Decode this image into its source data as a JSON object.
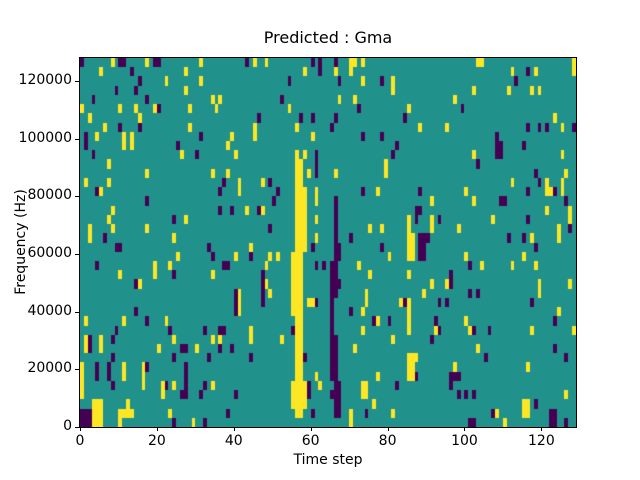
{
  "chart_data": {
    "type": "heatmap",
    "title": "Predicted : Gma",
    "xlabel": "Time step",
    "ylabel": "Frequency (Hz)",
    "x_range": [
      0,
      129
    ],
    "y_range": [
      0,
      128000
    ],
    "x_ticks": [
      "0",
      "20",
      "40",
      "60",
      "80",
      "100",
      "120"
    ],
    "x_tick_values": [
      0,
      20,
      40,
      60,
      80,
      100,
      120
    ],
    "y_ticks": [
      "0",
      "20000",
      "40000",
      "60000",
      "80000",
      "100000",
      "120000"
    ],
    "y_tick_values": [
      0,
      20000,
      40000,
      60000,
      80000,
      100000,
      120000
    ],
    "grid": {
      "cols": 129,
      "rows": 40
    },
    "legend": "none",
    "gridlines": false,
    "colormap": {
      "name": "viridis-3-level",
      "background_mid": "#21918c",
      "low_purple": "#440154",
      "high_yellow": "#fde725"
    },
    "noise": {
      "seed": 1337,
      "p_purple": 0.028,
      "p_yellow": 0.033
    },
    "features": [
      [
        "y",
        55,
        58,
        2,
        4
      ],
      [
        "y",
        56,
        57,
        1,
        1
      ],
      [
        "y",
        56,
        57,
        5,
        11
      ],
      [
        "y",
        55,
        57,
        12,
        18
      ],
      [
        "y",
        56,
        58,
        19,
        25
      ],
      [
        "y",
        56,
        57,
        26,
        28
      ],
      [
        "p",
        66,
        67,
        1,
        4
      ],
      [
        "p",
        65,
        66,
        5,
        9
      ],
      [
        "p",
        65,
        65,
        10,
        13
      ],
      [
        "p",
        65,
        66,
        14,
        17
      ],
      [
        "p",
        66,
        66,
        18,
        24
      ],
      [
        "p",
        67,
        67,
        18,
        19
      ],
      [
        "y",
        85,
        86,
        5,
        7
      ],
      [
        "y",
        85,
        85,
        10,
        13
      ],
      [
        "y",
        85,
        86,
        18,
        20
      ],
      [
        "y",
        85,
        85,
        21,
        22
      ],
      [
        "p",
        0,
        2,
        0,
        1
      ],
      [
        "y",
        3,
        5,
        0,
        2
      ],
      [
        "y",
        0,
        0,
        3,
        4
      ],
      [
        "y",
        0,
        0,
        5,
        6
      ],
      [
        "p",
        4,
        4,
        5,
        6
      ],
      [
        "p",
        7,
        7,
        5,
        6
      ],
      [
        "y",
        11,
        11,
        5,
        6
      ],
      [
        "p",
        27,
        27,
        5,
        6
      ],
      [
        "y",
        1,
        1,
        8,
        9
      ],
      [
        "y",
        5,
        5,
        8,
        9
      ],
      [
        "p",
        2,
        2,
        8,
        8
      ],
      [
        "y",
        20,
        20,
        8,
        8
      ],
      [
        "p",
        9,
        9,
        10,
        10
      ],
      [
        "p",
        23,
        23,
        10,
        10
      ],
      [
        "y",
        10,
        10,
        0,
        1
      ],
      [
        "y",
        12,
        12,
        1,
        2
      ],
      [
        "y",
        16,
        16,
        4,
        5
      ],
      [
        "y",
        21,
        21,
        3,
        4
      ],
      [
        "p",
        27,
        27,
        3,
        4
      ],
      [
        "p",
        8,
        8,
        4,
        4
      ],
      [
        "p",
        32,
        32,
        10,
        10
      ],
      [
        "p",
        59,
        59,
        3,
        4
      ],
      [
        "y",
        61,
        61,
        5,
        5
      ],
      [
        "p",
        61,
        61,
        27,
        29
      ],
      [
        "y",
        61,
        61,
        24,
        25
      ],
      [
        "p",
        62,
        62,
        38,
        39
      ],
      [
        "y",
        70,
        70,
        38,
        39
      ],
      [
        "p",
        67,
        67,
        37,
        37
      ],
      [
        "p",
        78,
        78,
        37,
        37
      ],
      [
        "y",
        81,
        81,
        36,
        37
      ],
      [
        "y",
        73,
        74,
        3,
        4
      ],
      [
        "p",
        11,
        11,
        39,
        39
      ],
      [
        "y",
        17,
        17,
        39,
        39
      ],
      [
        "p",
        19,
        19,
        39,
        39
      ],
      [
        "p",
        43,
        43,
        39,
        39
      ],
      [
        "y",
        48,
        48,
        39,
        39
      ],
      [
        "y",
        27,
        27,
        38,
        38
      ],
      [
        "p",
        3,
        3,
        35,
        35
      ],
      [
        "p",
        17,
        17,
        35,
        35
      ],
      [
        "y",
        34,
        34,
        35,
        35
      ],
      [
        "y",
        14,
        14,
        34,
        34
      ],
      [
        "p",
        20,
        20,
        34,
        34
      ],
      [
        "y",
        28,
        28,
        34,
        34
      ],
      [
        "p",
        1,
        1,
        30,
        31
      ],
      [
        "y",
        13,
        13,
        31,
        31
      ],
      [
        "y",
        128,
        128,
        38,
        39
      ],
      [
        "p",
        116,
        116,
        38,
        38
      ],
      [
        "y",
        111,
        111,
        36,
        36
      ],
      [
        "p",
        108,
        109,
        29,
        30
      ],
      [
        "p",
        109,
        110,
        24,
        24
      ],
      [
        "y",
        121,
        121,
        25,
        26
      ],
      [
        "y",
        125,
        125,
        25,
        26
      ],
      [
        "p",
        122,
        123,
        0,
        1
      ],
      [
        "y",
        115,
        116,
        1,
        2
      ],
      [
        "p",
        101,
        102,
        0,
        0
      ],
      [
        "p",
        40,
        40,
        12,
        14
      ],
      [
        "y",
        41,
        41,
        12,
        14
      ],
      [
        "p",
        47,
        47,
        13,
        16
      ],
      [
        "y",
        44,
        44,
        9,
        10
      ],
      [
        "p",
        88,
        89,
        18,
        20
      ],
      [
        "y",
        91,
        91,
        21,
        22
      ],
      [
        "p",
        96,
        96,
        15,
        16
      ]
    ]
  }
}
